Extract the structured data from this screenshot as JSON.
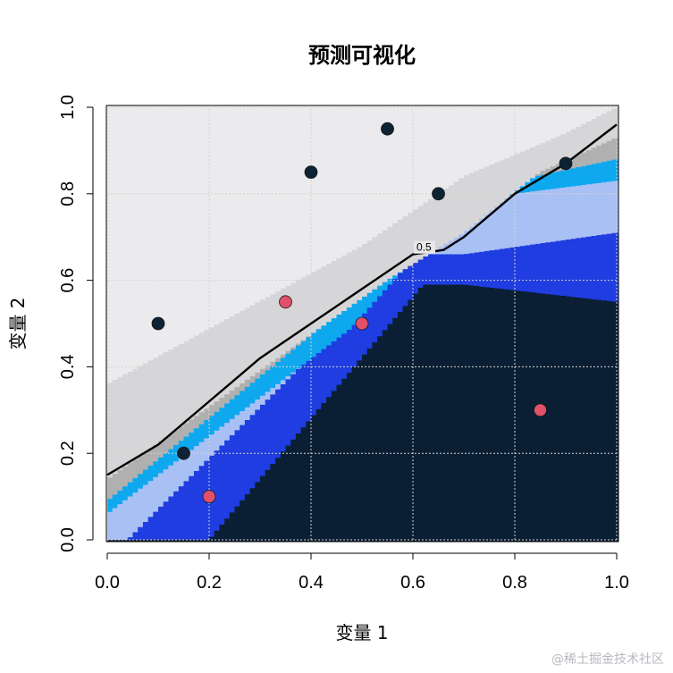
{
  "chart_data": {
    "type": "scatter",
    "title": "预测可视化",
    "xlabel": "变量 1",
    "ylabel": "变量 2",
    "xlim": [
      0,
      1
    ],
    "ylim": [
      0,
      1
    ],
    "xticks": [
      "0.0",
      "0.2",
      "0.4",
      "0.6",
      "0.8",
      "1.0"
    ],
    "yticks": [
      "0.0",
      "0.2",
      "0.4",
      "0.6",
      "0.8",
      "1.0"
    ],
    "grid": true,
    "background_regions": {
      "colors": [
        "#0a1f33",
        "#1f3de0",
        "#a9c0f5",
        "#0ea8ef",
        "#b0b0b0",
        "#d6d6d8",
        "#ebebed"
      ],
      "boundaries": [
        [
          [
            0.2,
            0.0
          ],
          [
            0.62,
            0.59
          ],
          [
            0.7,
            0.59
          ],
          [
            1.0,
            0.55
          ]
        ],
        [
          [
            0.04,
            0.0
          ],
          [
            0.6,
            0.66
          ],
          [
            0.7,
            0.66
          ],
          [
            1.0,
            0.71
          ]
        ],
        [
          [
            0.0,
            0.06
          ],
          [
            0.48,
            0.49
          ],
          [
            0.6,
            0.65
          ],
          [
            0.8,
            0.8
          ],
          [
            1.0,
            0.83
          ]
        ],
        [
          [
            0.0,
            0.09
          ],
          [
            0.48,
            0.55
          ],
          [
            0.65,
            0.7
          ],
          [
            0.8,
            0.83
          ],
          [
            1.0,
            0.88
          ]
        ],
        [
          [
            0.0,
            0.14
          ],
          [
            0.55,
            0.6
          ],
          [
            0.7,
            0.71
          ],
          [
            0.85,
            0.85
          ],
          [
            1.0,
            0.93
          ]
        ],
        [
          [
            0.0,
            0.36
          ],
          [
            0.5,
            0.68
          ],
          [
            0.7,
            0.84
          ],
          [
            0.9,
            0.94
          ],
          [
            1.0,
            1.0
          ]
        ]
      ]
    },
    "decision_boundary": {
      "label": "0.5",
      "color": "#000000",
      "points": [
        [
          0.0,
          0.15
        ],
        [
          0.1,
          0.22
        ],
        [
          0.2,
          0.32
        ],
        [
          0.3,
          0.42
        ],
        [
          0.4,
          0.5
        ],
        [
          0.5,
          0.58
        ],
        [
          0.6,
          0.66
        ],
        [
          0.66,
          0.67
        ],
        [
          0.7,
          0.7
        ],
        [
          0.8,
          0.8
        ],
        [
          0.9,
          0.87
        ],
        [
          1.0,
          0.96
        ]
      ]
    },
    "series": [
      {
        "color": "#0d2233",
        "points": [
          [
            0.1,
            0.5
          ],
          [
            0.15,
            0.2
          ],
          [
            0.4,
            0.85
          ],
          [
            0.55,
            0.95
          ],
          [
            0.65,
            0.8
          ],
          [
            0.9,
            0.87
          ]
        ]
      },
      {
        "color": "#e0506a",
        "points": [
          [
            0.2,
            0.1
          ],
          [
            0.35,
            0.55
          ],
          [
            0.5,
            0.5
          ],
          [
            0.85,
            0.3
          ]
        ]
      }
    ]
  },
  "watermark": "@稀土掘金技术社区"
}
